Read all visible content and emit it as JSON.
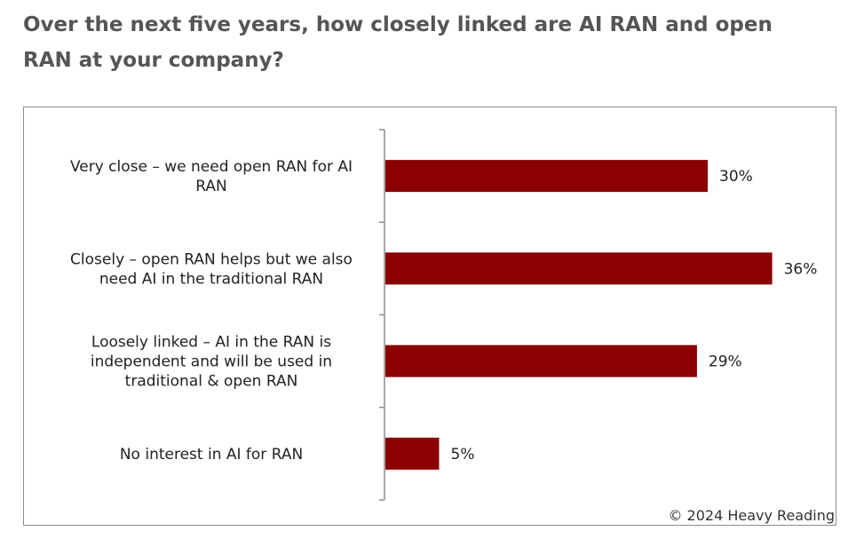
{
  "page": {
    "title": "Over the next five years, how closely linked are AI RAN and open RAN at your company?"
  },
  "chart_data": {
    "type": "bar",
    "orientation": "horizontal",
    "categories": [
      [
        "Very close – we need open RAN for AI",
        "RAN"
      ],
      [
        "Closely – open RAN helps but we also",
        "need AI in the traditional RAN"
      ],
      [
        "Loosely linked – AI in the RAN is",
        "independent and will be used in",
        "traditional & open RAN"
      ],
      [
        "No interest in AI for RAN"
      ]
    ],
    "values": [
      30,
      36,
      29,
      5
    ],
    "value_labels": [
      "30%",
      "36%",
      "29%",
      "5%"
    ],
    "value_unit": "%",
    "xlim": [
      0,
      40
    ],
    "bar_color": "#8b0000",
    "grid": false,
    "credit": "© 2024 Heavy Reading"
  }
}
